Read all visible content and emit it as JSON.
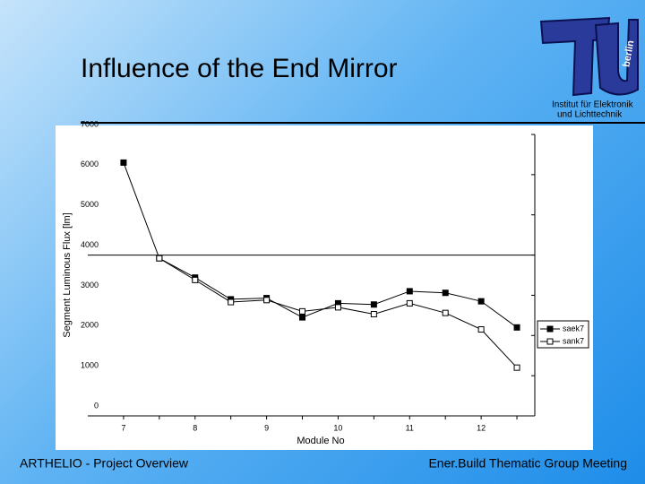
{
  "slide": {
    "title": "Influence of the End Mirror",
    "footer_left": "ARTHELIO - Project Overview",
    "footer_right": "Ener.Build Thematic Group Meeting",
    "logo_city": "berlin",
    "logo_line1": "Institut für Elektronik",
    "logo_line2": "und Lichttechnik"
  },
  "chart_data": {
    "type": "line",
    "x": [
      7,
      7.5,
      8,
      8.5,
      9,
      9.5,
      10,
      10.5,
      11,
      11.5,
      12,
      12.5
    ],
    "series": [
      {
        "name": "saek7",
        "color": "#000000",
        "marker": "filled-square",
        "values": [
          6300,
          3920,
          3440,
          2900,
          2930,
          2450,
          2800,
          2770,
          3100,
          3060,
          2850,
          2200
        ]
      },
      {
        "name": "sank7",
        "color": "#000000",
        "marker": "open-square",
        "values": [
          null,
          3920,
          3380,
          2830,
          2880,
          2600,
          2700,
          2530,
          2800,
          2560,
          2150,
          1200
        ]
      }
    ],
    "xlim": [
      6.5,
      12.75
    ],
    "xticks": [
      7,
      8,
      9,
      10,
      11,
      12
    ],
    "ylim": [
      0,
      7000
    ],
    "yticks": [
      0,
      1000,
      2000,
      3000,
      4000,
      5000,
      6000,
      7000
    ],
    "reference_line": 4000,
    "x_label": "Module No",
    "y_label": "Segment Luminous Flux [lm]",
    "legend": "right"
  }
}
